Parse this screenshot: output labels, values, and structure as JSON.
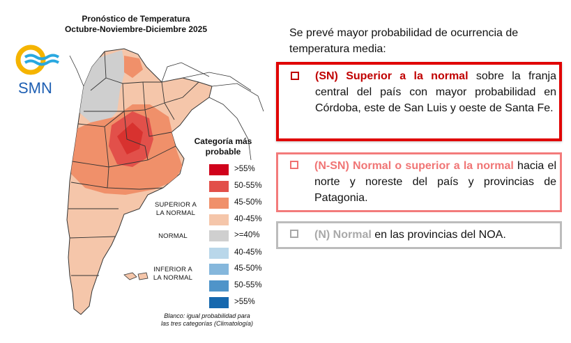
{
  "map": {
    "title_line1": "Pronóstico de Temperatura",
    "title_line2": "Octubre-Noviembre-Diciembre 2025",
    "logo_text": "SMN",
    "legend": {
      "title_line1": "Categoría más",
      "title_line2": "probable",
      "items": [
        {
          "label": ">55%",
          "color": "#d0021b"
        },
        {
          "label": "50-55%",
          "color": "#e2504a"
        },
        {
          "label": "45-50%",
          "color": "#f0906a"
        },
        {
          "label": "40-45%",
          "color": "#f5c6aa"
        },
        {
          "label": ">=40%",
          "color": "#cfcfcf"
        },
        {
          "label": "40-45%",
          "color": "#b9d7ea"
        },
        {
          "label": "45-50%",
          "color": "#85b7dc"
        },
        {
          "label": "50-55%",
          "color": "#4f94c9"
        },
        {
          "label": ">55%",
          "color": "#1668ae"
        }
      ],
      "group_above_1": "SUPERIOR A",
      "group_above_2": "LA NORMAL",
      "group_normal": "NORMAL",
      "group_below_1": "INFERIOR A",
      "group_below_2": "LA NORMAL"
    },
    "note_line1": "Blanco: igual probabilidad para",
    "note_line2": "las tres categorías (Climatología)"
  },
  "text": {
    "intro": "Se prevé mayor probabilidad de ocurrencia de temperatura media:",
    "bullet1_highlight": "(SN) Superior a la normal",
    "bullet1_rest": " sobre la franja central del país con mayor probabilidad en Córdoba, este de San Luis y oeste de Santa Fe.",
    "bullet2_highlight": "(N-SN) Normal o superior a la normal",
    "bullet2_rest": " hacia el norte y noreste del país y provincias de Patagonia.",
    "bullet3_highlight": "(N) Normal",
    "bullet3_rest": " en las provincias del NOA."
  },
  "colors": {
    "accent_red": "#e00000",
    "accent_pink": "#f37b7b",
    "accent_gray": "#bcbcbc"
  }
}
